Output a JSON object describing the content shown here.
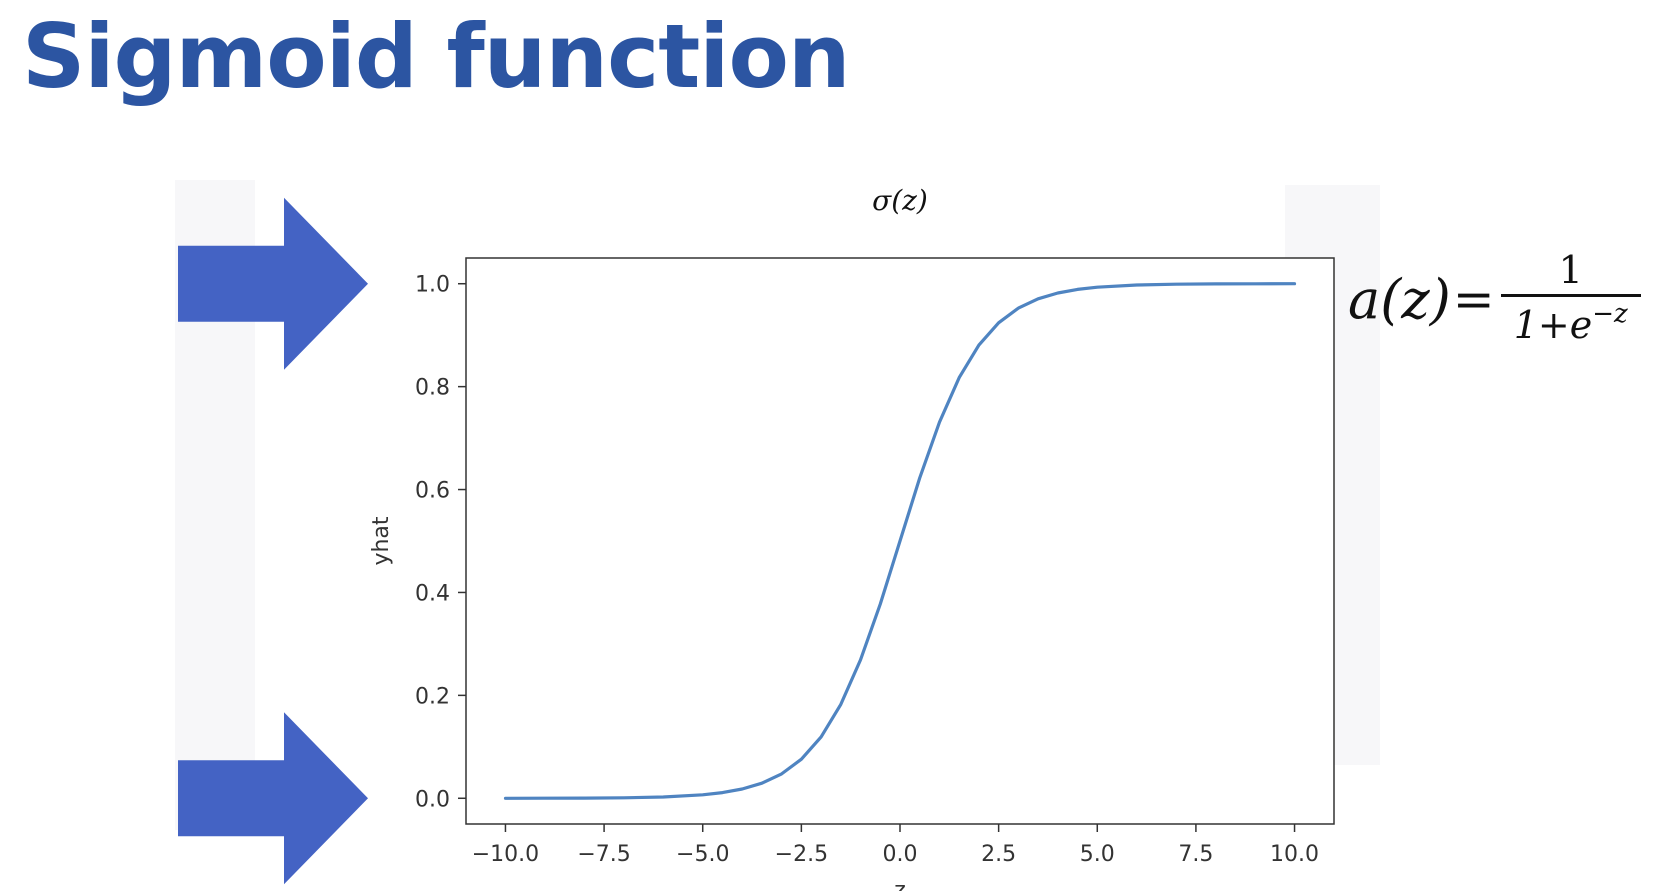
{
  "slide": {
    "title": "Sigmoid function",
    "accent_color": "#2c55a2",
    "arrow_color": "#4463c4"
  },
  "arrows": [
    {
      "name": "arrow-pointing-to-1",
      "icon": "right-arrow-icon",
      "points_at_y": 1.0
    },
    {
      "name": "arrow-pointing-to-0",
      "icon": "right-arrow-icon",
      "points_at_y": 0.0
    }
  ],
  "formula": {
    "lhs": "a(z)",
    "equals": "=",
    "numerator": "1",
    "denominator_base": "1+e",
    "denominator_exponent": "−z"
  },
  "chart_data": {
    "type": "line",
    "title": "σ(z)",
    "xlabel": "z",
    "ylabel": "yhat",
    "xlim": [
      -11.0,
      11.0
    ],
    "ylim": [
      -0.05,
      1.05
    ],
    "xticks": [
      -10.0,
      -7.5,
      -5.0,
      -2.5,
      0.0,
      2.5,
      5.0,
      7.5,
      10.0
    ],
    "xtick_labels": [
      "−10.0",
      "−7.5",
      "−5.0",
      "−2.5",
      "0.0",
      "2.5",
      "5.0",
      "7.5",
      "10.0"
    ],
    "yticks": [
      0.0,
      0.2,
      0.4,
      0.6,
      0.8,
      1.0
    ],
    "ytick_labels": [
      "0.0",
      "0.2",
      "0.4",
      "0.6",
      "0.8",
      "1.0"
    ],
    "grid": false,
    "line_color": "#4f84c1",
    "series": [
      {
        "x": [
          -10,
          -9,
          -8,
          -7,
          -6,
          -5,
          -4.5,
          -4,
          -3.5,
          -3,
          -2.5,
          -2,
          -1.5,
          -1,
          -0.5,
          0,
          0.5,
          1,
          1.5,
          2,
          2.5,
          3,
          3.5,
          4,
          4.5,
          5,
          6,
          7,
          8,
          9,
          10
        ],
        "values": [
          0.0,
          0.0001,
          0.0003,
          0.0009,
          0.0025,
          0.0067,
          0.011,
          0.018,
          0.0293,
          0.0474,
          0.0759,
          0.1192,
          0.1824,
          0.2689,
          0.3775,
          0.5,
          0.6225,
          0.7311,
          0.8176,
          0.8808,
          0.9241,
          0.9526,
          0.9707,
          0.982,
          0.989,
          0.9933,
          0.9975,
          0.9991,
          0.9997,
          0.9999,
          1.0
        ]
      }
    ]
  }
}
